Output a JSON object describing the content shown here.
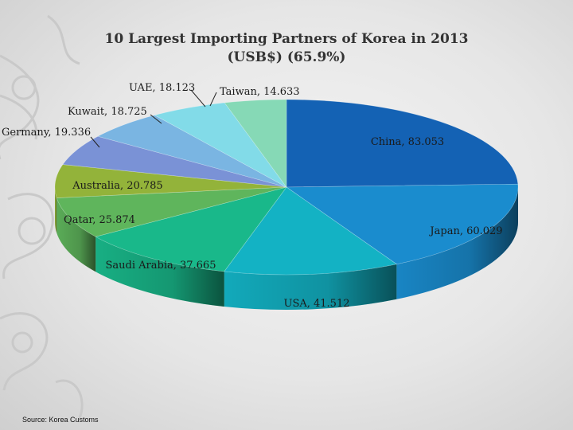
{
  "chart_data": {
    "type": "pie",
    "title": "10 Largest Importing Partners of Korea in 2013",
    "subtitle": "(USB$) (65.9%)",
    "style": "3d",
    "label_format": "name, value",
    "slices": [
      {
        "label": "China",
        "value_label": "83.053",
        "value": 83.053,
        "color": "#1462b4"
      },
      {
        "label": "Japan",
        "value_label": "60.029",
        "value": 60.029,
        "color": "#1a8cce"
      },
      {
        "label": "USA",
        "value_label": "41.512",
        "value": 41.512,
        "color": "#13b2c4"
      },
      {
        "label": "Saudi Arabia",
        "value_label": "37.665",
        "value": 37.665,
        "color": "#19b88a"
      },
      {
        "label": "Qatar",
        "value_label": "25.874",
        "value": 25.874,
        "color": "#5fb55c"
      },
      {
        "label": "Australia",
        "value_label": "20.785",
        "value": 20.785,
        "color": "#93b33a"
      },
      {
        "label": "Germany",
        "value_label": "19.336",
        "value": 19.336,
        "color": "#7a92d6"
      },
      {
        "label": "Kuwait",
        "value_label": "18.725",
        "value": 18.725,
        "color": "#7ab5e2"
      },
      {
        "label": "UAE",
        "value_label": "18.123",
        "value": 18.123,
        "color": "#82dbe8"
      },
      {
        "label": "Taiwan",
        "value_label": "14.633",
        "value": 14.633,
        "color": "#86d9b6"
      }
    ]
  },
  "footer": {
    "source": "Source: Korea Customs"
  }
}
